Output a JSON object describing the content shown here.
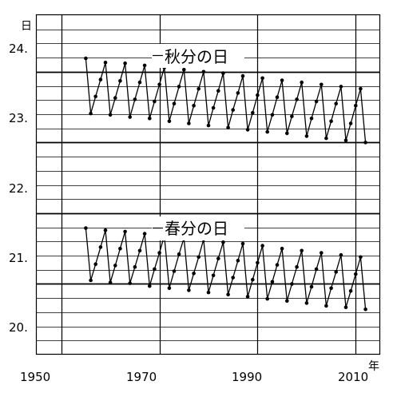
{
  "chart_data": {
    "type": "line",
    "xlabel": "年",
    "ylabel": "日",
    "x_ticks": [
      "1950",
      "1970",
      "1990",
      "2010"
    ],
    "y_ticks": [
      "20.",
      "21.",
      "22.",
      "23.",
      "24."
    ],
    "xlim": [
      1945,
      2015
    ],
    "ylim": [
      19.6,
      24.4
    ],
    "grid": true,
    "series": [
      {
        "name": "秋分の日",
        "x": [
          1955,
          1956,
          1957,
          1958,
          1959,
          1960,
          1961,
          1962,
          1963,
          1964,
          1965,
          1966,
          1967,
          1968,
          1969,
          1970,
          1971,
          1972,
          1973,
          1974,
          1975,
          1976,
          1977,
          1978,
          1979,
          1980,
          1981,
          1982,
          1983,
          1984,
          1985,
          1986,
          1987,
          1988,
          1989,
          1990,
          1991,
          1992,
          1993,
          1994,
          1995,
          1996,
          1997,
          1998,
          1999,
          2000,
          2001,
          2002,
          2003,
          2004,
          2005,
          2006,
          2007,
          2008,
          2009,
          2010,
          2011,
          2012
        ],
        "y": [
          23.79,
          23.01,
          23.25,
          23.49,
          23.73,
          22.99,
          23.23,
          23.47,
          23.72,
          22.96,
          23.21,
          23.45,
          23.69,
          22.94,
          23.18,
          23.42,
          23.66,
          22.9,
          23.15,
          23.39,
          23.63,
          22.87,
          23.12,
          23.36,
          23.6,
          22.84,
          23.09,
          23.33,
          23.58,
          22.81,
          23.06,
          23.3,
          23.54,
          22.78,
          23.02,
          23.27,
          23.51,
          22.75,
          22.99,
          23.24,
          23.48,
          22.73,
          22.97,
          23.21,
          23.45,
          22.69,
          22.94,
          23.18,
          23.42,
          22.66,
          22.9,
          23.15,
          23.39,
          22.63,
          22.87,
          23.12,
          23.36,
          22.6
        ]
      },
      {
        "name": "春分の日",
        "x": [
          1955,
          1956,
          1957,
          1958,
          1959,
          1960,
          1961,
          1962,
          1963,
          1964,
          1965,
          1966,
          1967,
          1968,
          1969,
          1970,
          1971,
          1972,
          1973,
          1974,
          1975,
          1976,
          1977,
          1978,
          1979,
          1980,
          1981,
          1982,
          1983,
          1984,
          1985,
          1986,
          1987,
          1988,
          1989,
          1990,
          1991,
          1992,
          1993,
          1994,
          1995,
          1996,
          1997,
          1998,
          1999,
          2000,
          2001,
          2002,
          2003,
          2004,
          2005,
          2006,
          2007,
          2008,
          2009,
          2010,
          2011,
          2012
        ],
        "y": [
          21.39,
          20.65,
          20.88,
          21.12,
          21.36,
          20.62,
          20.86,
          21.1,
          21.34,
          20.61,
          20.84,
          21.07,
          21.31,
          20.57,
          20.81,
          21.04,
          21.28,
          20.54,
          20.78,
          21.02,
          21.25,
          20.51,
          20.75,
          20.98,
          21.23,
          20.48,
          20.72,
          20.96,
          21.19,
          20.45,
          20.69,
          20.93,
          21.17,
          20.42,
          20.66,
          20.9,
          21.14,
          20.39,
          20.63,
          20.87,
          21.1,
          20.36,
          20.6,
          20.84,
          21.07,
          20.33,
          20.56,
          20.81,
          21.04,
          20.29,
          20.54,
          20.77,
          21.01,
          20.27,
          20.5,
          20.74,
          20.98,
          20.24
        ]
      }
    ]
  }
}
